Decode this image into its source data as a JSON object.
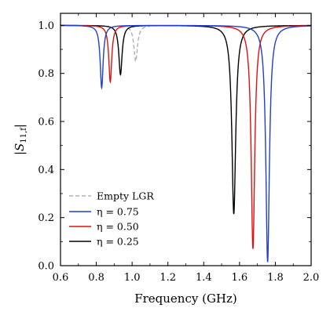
{
  "chart_data": {
    "type": "line",
    "title": "",
    "xlabel": "Frequency (GHz)",
    "ylabel": "|S11,f|",
    "ylabel_main": "|S",
    "ylabel_sub": "11,f",
    "ylabel_close": "|",
    "xlim": [
      0.6,
      2.0
    ],
    "ylim": [
      0.0,
      1.05
    ],
    "xticks": [
      0.6,
      0.8,
      1.0,
      1.2,
      1.4,
      1.6,
      1.8,
      2.0
    ],
    "xtick_labels": [
      "0.6",
      "0.8",
      "1.0",
      "1.2",
      "1.4",
      "1.6",
      "1.8",
      "2.0"
    ],
    "yticks": [
      0.0,
      0.2,
      0.4,
      0.6,
      0.8,
      1.0
    ],
    "ytick_labels": [
      "0.0",
      "0.2",
      "0.4",
      "0.6",
      "0.8",
      "1.0"
    ],
    "grid": false,
    "legend_position": "lower-left",
    "series": [
      {
        "name": "Empty LGR",
        "legend_text": "Empty LGR",
        "color": "#b0b0b0",
        "dashed": true,
        "resonances": [
          {
            "f0": 1.02,
            "depth": 0.15,
            "width": 0.012
          }
        ]
      },
      {
        "name": "η = 0.75",
        "legend_text": "η = 0.75",
        "color": "#1f3fd0",
        "dashed": false,
        "resonances": [
          {
            "f0": 0.83,
            "depth": 0.26,
            "width": 0.01
          },
          {
            "f0": 1.757,
            "depth": 0.985,
            "width": 0.012
          }
        ]
      },
      {
        "name": "η = 0.50",
        "legend_text": "η = 0.50",
        "color": "#e01010",
        "dashed": false,
        "resonances": [
          {
            "f0": 0.878,
            "depth": 0.235,
            "width": 0.01
          },
          {
            "f0": 1.675,
            "depth": 0.93,
            "width": 0.012
          }
        ]
      },
      {
        "name": "η = 0.25",
        "legend_text": "η = 0.25",
        "color": "#000000",
        "dashed": false,
        "resonances": [
          {
            "f0": 0.935,
            "depth": 0.205,
            "width": 0.011
          },
          {
            "f0": 1.568,
            "depth": 0.785,
            "width": 0.013
          }
        ]
      }
    ]
  }
}
